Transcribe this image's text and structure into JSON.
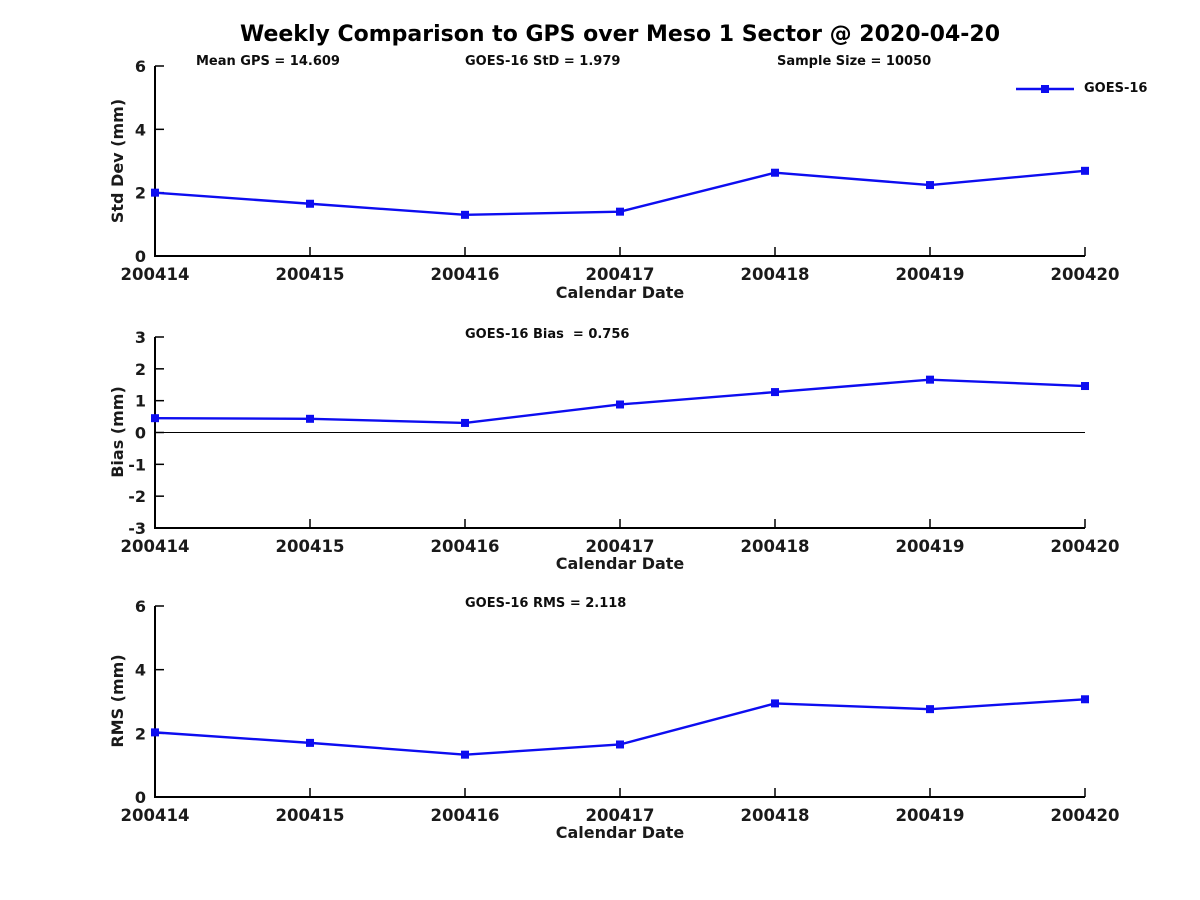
{
  "title": "Weekly Comparison to GPS over Meso 1 Sector @ 2020-04-20",
  "annotations": {
    "mean_gps": "Mean GPS = 14.609",
    "std": "GOES-16 StD = 1.979",
    "sample_size": "Sample Size = 10050",
    "bias": "GOES-16 Bias  = 0.756",
    "rms": "GOES-16 RMS = 2.118"
  },
  "legend": {
    "label": "GOES-16",
    "color": "#0D0DF0",
    "marker": "filled-square",
    "position": "top-right"
  },
  "chart_data": [
    {
      "type": "line",
      "name": "std-dev",
      "categories": [
        "200414",
        "200415",
        "200416",
        "200417",
        "200418",
        "200419",
        "200420"
      ],
      "series": [
        {
          "name": "GOES-16",
          "values": [
            2.0,
            1.65,
            1.3,
            1.4,
            2.63,
            2.24,
            2.69
          ]
        }
      ],
      "xlabel": "Calendar Date",
      "ylabel": "Std Dev (mm)",
      "ylim": [
        0,
        6
      ],
      "yticks": [
        0,
        2,
        4,
        6
      ],
      "grid": false,
      "zero_line": false,
      "line_color": "#0D0DF0",
      "marker": "square"
    },
    {
      "type": "line",
      "name": "bias",
      "categories": [
        "200414",
        "200415",
        "200416",
        "200417",
        "200418",
        "200419",
        "200420"
      ],
      "series": [
        {
          "name": "GOES-16",
          "values": [
            0.45,
            0.43,
            0.3,
            0.88,
            1.27,
            1.66,
            1.46
          ]
        }
      ],
      "xlabel": "Calendar Date",
      "ylabel": "Bias (mm)",
      "ylim": [
        -3,
        3
      ],
      "yticks": [
        -3,
        -2,
        -1,
        0,
        1,
        2,
        3
      ],
      "grid": false,
      "zero_line": true,
      "line_color": "#0D0DF0",
      "marker": "square"
    },
    {
      "type": "line",
      "name": "rms",
      "categories": [
        "200414",
        "200415",
        "200416",
        "200417",
        "200418",
        "200419",
        "200420"
      ],
      "series": [
        {
          "name": "GOES-16",
          "values": [
            2.03,
            1.7,
            1.33,
            1.65,
            2.94,
            2.76,
            3.07
          ]
        }
      ],
      "xlabel": "Calendar Date",
      "ylabel": "RMS (mm)",
      "ylim": [
        0,
        6
      ],
      "yticks": [
        0,
        2,
        4,
        6
      ],
      "grid": false,
      "zero_line": false,
      "line_color": "#0D0DF0",
      "marker": "square"
    }
  ]
}
